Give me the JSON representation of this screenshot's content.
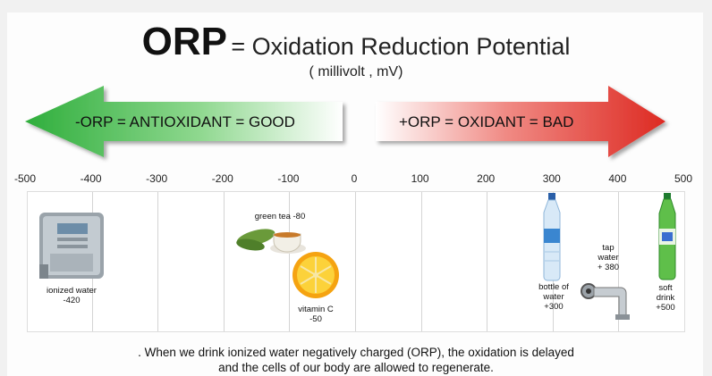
{
  "title": {
    "acronym": "ORP",
    "expansion": "= Oxidation Reduction Potential",
    "unit": "( millivolt , mV)"
  },
  "arrows": {
    "good_label": "-ORP = ANTIOXIDANT = GOOD",
    "bad_label": "+ORP = OXIDANT = BAD",
    "good_color": "#3cb84a",
    "bad_color": "#e03a32"
  },
  "scale": {
    "min": -500,
    "max": 500,
    "ticks": [
      "-500",
      "-400",
      "-300",
      "-200",
      "-100",
      "0",
      "100",
      "200",
      "300",
      "400",
      "500"
    ]
  },
  "items": {
    "ionized_water": {
      "label": "ionized water",
      "value": "-420"
    },
    "green_tea": {
      "label": "green tea -80"
    },
    "vitamin_c": {
      "label": "vitamin C",
      "value": "-50"
    },
    "bottle_water": {
      "label1": "bottle of",
      "label2": "water",
      "value": "+300"
    },
    "tap_water": {
      "label1": "tap",
      "label2": "water",
      "value": "+ 380"
    },
    "soft_drink": {
      "label1": "soft",
      "label2": "drink",
      "value": "+500"
    }
  },
  "footer": {
    "line1": ". When we drink ionized water negatively charged (ORP),  the oxidation is delayed",
    "line2": "and the cells of our body are allowed to regenerate."
  }
}
